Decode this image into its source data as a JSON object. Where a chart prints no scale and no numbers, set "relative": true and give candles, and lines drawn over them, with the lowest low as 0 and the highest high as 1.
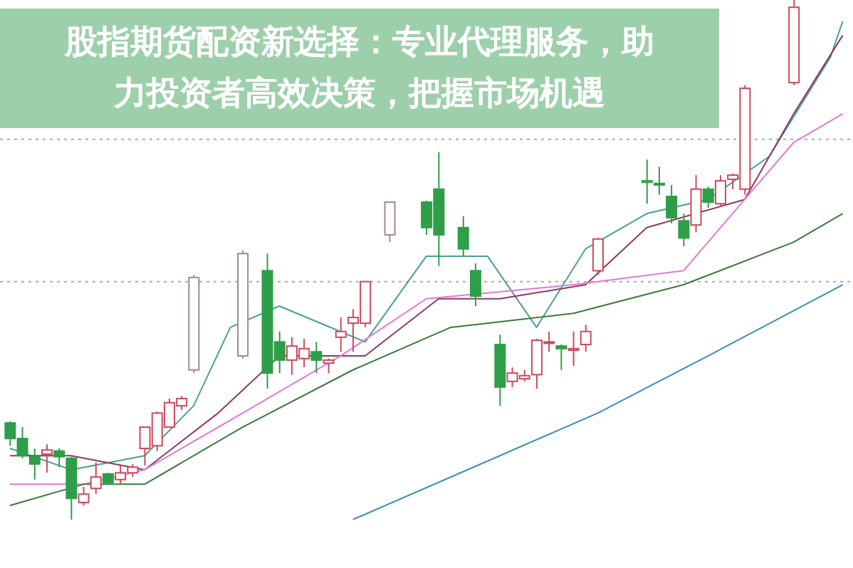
{
  "chart_data": {
    "type": "candlestick",
    "title": "股指期货配资新选择：专业代理服务，助力投资者高效决策，把握市场机遇",
    "relative": true,
    "categories": [
      null,
      null,
      null,
      null,
      null,
      null,
      null,
      null,
      null,
      null,
      null,
      null,
      null,
      null,
      null,
      null,
      null,
      null,
      null,
      null,
      null,
      null,
      null,
      null,
      null,
      null,
      null,
      null,
      null,
      null,
      null,
      null,
      null,
      null,
      null,
      null,
      null,
      null,
      null,
      null,
      null,
      null,
      null,
      null,
      null,
      null,
      null,
      null,
      null,
      null,
      null,
      null,
      null,
      null,
      null,
      null,
      null,
      null,
      null,
      null,
      null,
      null,
      null,
      null,
      null,
      null,
      null,
      null,
      null
    ],
    "ohlc": [
      [
        0.186,
        0.189,
        0.142,
        0.156
      ],
      [
        0.156,
        0.178,
        0.118,
        0.123
      ],
      [
        0.121,
        0.137,
        0.077,
        0.107
      ],
      [
        0.126,
        0.145,
        0.09,
        0.134
      ],
      [
        0.132,
        0.137,
        0.101,
        0.121
      ],
      [
        0.118,
        0.121,
        0,
        0.041
      ],
      [
        0.033,
        0.063,
        0.027,
        0.049
      ],
      [
        0.06,
        0.11,
        0.049,
        0.082
      ],
      [
        0.088,
        0.09,
        0.068,
        0.071
      ],
      [
        0.077,
        0.104,
        0.068,
        0.09
      ],
      [
        0.09,
        0.107,
        0.082,
        0.101
      ],
      [
        0.137,
        0.178,
        0.104,
        0.178
      ],
      [
        0.142,
        0.208,
        0.132,
        0.205
      ],
      [
        0.178,
        0.233,
        0.178,
        0.225
      ],
      [
        0.219,
        0.238,
        0.211,
        0.233
      ],
      [
        0.288,
        0.471,
        0.282,
        0.466
      ],
      null,
      null,
      null,
      [
        0.315,
        0.518,
        0.31,
        0.512
      ],
      null,
      [
        0.479,
        0.512,
        0.252,
        0.282
      ],
      [
        0.342,
        0.362,
        0.282,
        0.307
      ],
      [
        0.307,
        0.351,
        0.279,
        0.334
      ],
      [
        0.31,
        0.348,
        0.293,
        0.329
      ],
      [
        0.323,
        0.342,
        0.282,
        0.307
      ],
      [
        0.301,
        0.31,
        0.282,
        0.307
      ],
      [
        0.351,
        0.389,
        0.323,
        0.362
      ],
      [
        0.378,
        0.405,
        0.323,
        0.389
      ],
      [
        0.378,
        0.458,
        0.37,
        0.458
      ],
      null,
      [
        0.548,
        0.611,
        0.534,
        0.611
      ],
      null,
      null,
      [
        0.611,
        0.614,
        0.548,
        0.562
      ],
      [
        0.636,
        0.707,
        0.488,
        0.548
      ],
      null,
      [
        0.562,
        0.584,
        0.507,
        0.521
      ],
      [
        0.479,
        0.493,
        0.411,
        0.43
      ],
      null,
      [
        0.337,
        0.356,
        0.219,
        0.255
      ],
      [
        0.266,
        0.293,
        0.255,
        0.282
      ],
      [
        0.271,
        0.288,
        0.266,
        0.277
      ],
      [
        0.279,
        0.348,
        0.252,
        0.345
      ],
      [
        0.34,
        0.362,
        0.323,
        0.342
      ],
      [
        0.334,
        0.337,
        0.288,
        0.329
      ],
      [
        0.326,
        0.362,
        0.296,
        0.329
      ],
      [
        0.337,
        0.375,
        0.323,
        0.362
      ],
      [
        0.479,
        0.542,
        0.471,
        0.54
      ],
      null,
      null,
      null,
      [
        0.649,
        0.693,
        0.608,
        0.652
      ],
      [
        0.647,
        0.679,
        0.625,
        0.644
      ],
      [
        0.622,
        0.644,
        0.57,
        0.581
      ],
      [
        0.575,
        0.589,
        0.526,
        0.542
      ],
      [
        0.567,
        0.663,
        0.553,
        0.636
      ],
      [
        0.636,
        0.641,
        0.6,
        0.611
      ],
      [
        0.608,
        0.663,
        0.603,
        0.652
      ],
      [
        0.655,
        0.666,
        0.636,
        0.663
      ],
      [
        0.636,
        0.836,
        0.625,
        0.83
      ],
      null,
      null,
      null,
      [
        0.841,
        1,
        0.836,
        0.986
      ],
      null,
      null,
      null,
      null
    ],
    "colors": [
      "#2e9e48",
      "#2e9e48",
      "#2e9e48",
      "#d0495a",
      "#2e9e48",
      "#2e9e48",
      "#d0495a",
      "#d0495a",
      "#2e9e48",
      "#d0495a",
      "#d0495a",
      "#d0495a",
      "#d0495a",
      "#d0495a",
      "#d0495a",
      "#a08a8a",
      null,
      null,
      null,
      "#a08a8a",
      null,
      "#2e9e48",
      "#2e9e48",
      "#d0495a",
      "#d0495a",
      "#2e9e48",
      "#d0495a",
      "#d0495a",
      "#d0495a",
      "#d0495a",
      null,
      "#a08a8a",
      null,
      null,
      "#2e9e48",
      "#2e9e48",
      null,
      "#2e9e48",
      "#2e9e48",
      null,
      "#2e9e48",
      "#d0495a",
      "#d0495a",
      "#d0495a",
      "#d0495a",
      "#2e9e48",
      "#d0495a",
      "#d0495a",
      "#d0495a",
      null,
      null,
      null,
      "#2e9e48",
      "#2e9e48",
      "#2e9e48",
      "#2e9e48",
      "#d0495a",
      "#2e9e48",
      "#d0495a",
      "#d0495a",
      "#d0495a",
      null,
      null,
      null,
      "#d0495a",
      null,
      null,
      null,
      null
    ],
    "series": [
      {
        "type": "line",
        "color": "#4a9e9a",
        "values": [
          0.137,
          null,
          null,
          null,
          null,
          0.096,
          null,
          null,
          null,
          null,
          null,
          0.123,
          null,
          null,
          null,
          0.219,
          null,
          null,
          0.37,
          null,
          null,
          null,
          0.411,
          null,
          null,
          null,
          null,
          null,
          null,
          0.342,
          null,
          null,
          null,
          null,
          0.507,
          null,
          null,
          null,
          null,
          0.507,
          null,
          null,
          null,
          0.37,
          null,
          null,
          null,
          0.521,
          null,
          null,
          null,
          null,
          0.589,
          null,
          null,
          null,
          null,
          0.616,
          null,
          null,
          null,
          null,
          0.699,
          null,
          null,
          null,
          null,
          0.89,
          0.959
        ]
      },
      {
        "type": "line",
        "color": "#8b3a62",
        "values": [
          0.123,
          null,
          null,
          null,
          null,
          0.123,
          null,
          null,
          null,
          null,
          null,
          0.096,
          null,
          null,
          null,
          null,
          null,
          0.205,
          null,
          null,
          null,
          null,
          0.315,
          null,
          null,
          null,
          null,
          null,
          null,
          0.315,
          null,
          null,
          null,
          null,
          null,
          0.425,
          null,
          null,
          null,
          null,
          0.425,
          null,
          null,
          null,
          null,
          null,
          null,
          0.452,
          null,
          null,
          null,
          null,
          0.562,
          null,
          null,
          null,
          null,
          null,
          null,
          null,
          0.616,
          null,
          null,
          null,
          0.781,
          null,
          null,
          null,
          0.932
        ]
      },
      {
        "type": "line",
        "color": "#e07ad8",
        "values": [
          0.068,
          null,
          null,
          null,
          null,
          null,
          0.068,
          null,
          null,
          null,
          null,
          0.096,
          null,
          null,
          null,
          null,
          null,
          null,
          null,
          0.205,
          null,
          null,
          null,
          null,
          null,
          null,
          null,
          0.315,
          null,
          null,
          null,
          null,
          null,
          null,
          0.425,
          null,
          null,
          null,
          null,
          null,
          null,
          null,
          null,
          null,
          null,
          null,
          0.452,
          null,
          null,
          null,
          null,
          null,
          null,
          null,
          null,
          0.479,
          null,
          null,
          null,
          null,
          null,
          null,
          null,
          null,
          0.726,
          null,
          null,
          null,
          0.781
        ]
      },
      {
        "type": "line",
        "color": "#3b7a3b",
        "values": [
          0.027,
          null,
          null,
          null,
          null,
          null,
          0.068,
          null,
          null,
          null,
          null,
          0.068,
          null,
          null,
          null,
          null,
          null,
          null,
          null,
          0.178,
          null,
          null,
          null,
          null,
          null,
          null,
          null,
          null,
          0.288,
          null,
          null,
          null,
          null,
          null,
          null,
          null,
          0.37,
          null,
          null,
          null,
          null,
          null,
          null,
          null,
          null,
          null,
          0.397,
          null,
          null,
          null,
          null,
          null,
          null,
          null,
          null,
          0.452,
          null,
          null,
          null,
          null,
          null,
          null,
          null,
          null,
          0.534,
          null,
          null,
          null,
          0.589
        ]
      },
      {
        "type": "line",
        "color": "#3d8fb0",
        "values": [
          null,
          null,
          null,
          null,
          null,
          null,
          null,
          null,
          null,
          null,
          null,
          null,
          null,
          null,
          null,
          null,
          null,
          null,
          null,
          null,
          null,
          null,
          null,
          null,
          null,
          null,
          null,
          null,
          0,
          null,
          null,
          null,
          null,
          null,
          null,
          null,
          null,
          null,
          null,
          null,
          0.123,
          null,
          null,
          null,
          null,
          null,
          null,
          null,
          0.205,
          null,
          null,
          null,
          null,
          null,
          null,
          null,
          null,
          0.315,
          null,
          null,
          null,
          null,
          null,
          null,
          null,
          null,
          null,
          null,
          0.452
        ]
      }
    ],
    "ref_lines": [
      {
        "axis": "y",
        "value": 0.732,
        "color": "#aaaaaa",
        "line_style": "dotted"
      },
      {
        "axis": "y",
        "value": 0.458,
        "color": "#aaaaaa",
        "line_style": "dotted"
      }
    ]
  }
}
